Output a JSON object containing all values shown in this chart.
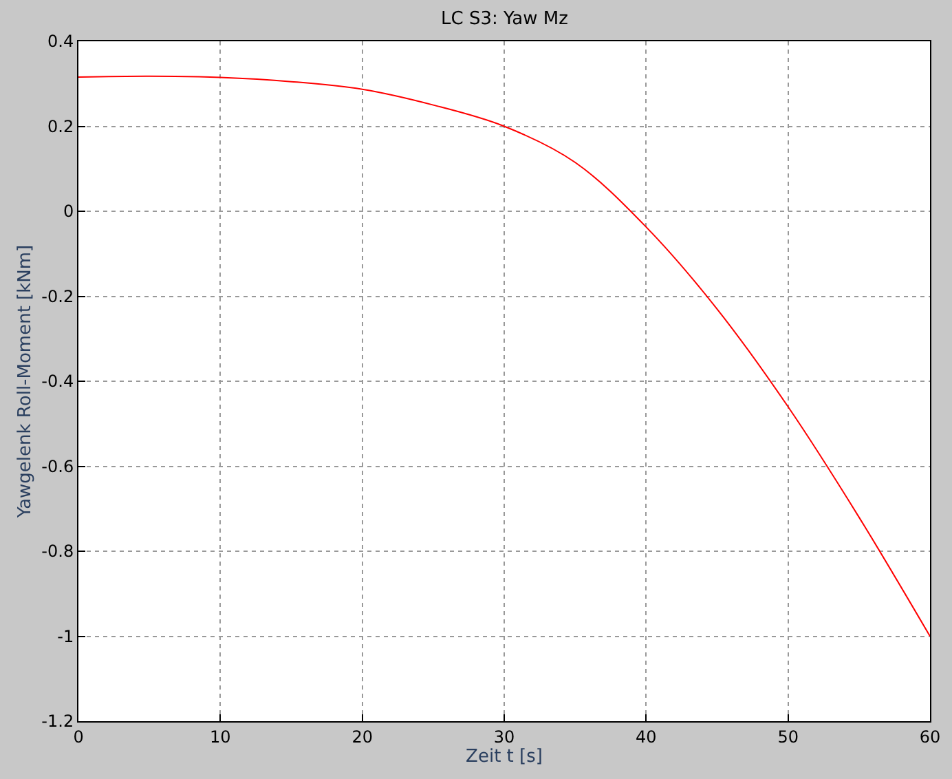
{
  "chart_data": {
    "type": "line",
    "title": "LC S3: Yaw Mz",
    "xlabel": "Zeit t [s]",
    "ylabel": "Yawgelenk Roll-Moment [kNm]",
    "x": [
      0,
      5,
      10,
      15,
      20,
      25,
      30,
      35,
      40,
      45,
      50,
      55,
      60
    ],
    "series": [
      {
        "color": "#ff0000",
        "values": [
          0.316,
          0.318,
          0.315,
          0.305,
          0.287,
          0.25,
          0.2,
          0.115,
          -0.037,
          -0.23,
          -0.46,
          -0.72,
          -1.0
        ]
      }
    ],
    "xlim": [
      0,
      60
    ],
    "xticks": [
      0,
      10,
      20,
      30,
      40,
      50,
      60
    ],
    "ylim": [
      -1.2,
      0.4
    ],
    "yticks": [
      -1.2,
      -1,
      -0.8,
      -0.6,
      -0.4,
      -0.2,
      0,
      0.2,
      0.4
    ],
    "grid": true,
    "line_style": "solid",
    "marker": "none"
  }
}
